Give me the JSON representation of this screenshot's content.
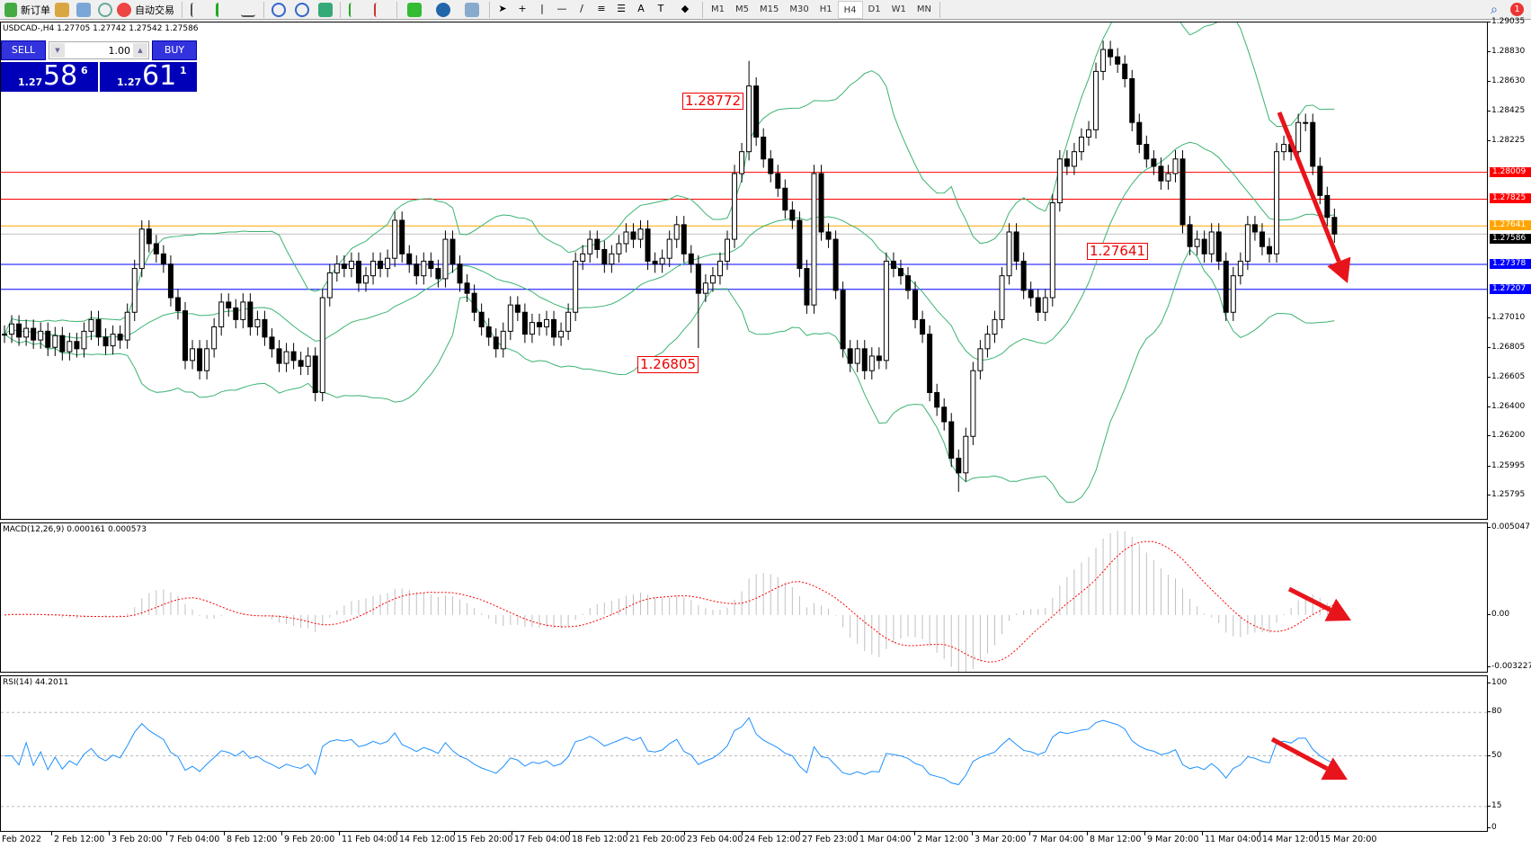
{
  "toolbar": {
    "new_order": "新订单",
    "auto_trading": "自动交易",
    "timeframes": [
      "M1",
      "M5",
      "M15",
      "M30",
      "H1",
      "H4",
      "D1",
      "W1",
      "MN"
    ],
    "active_timeframe": "H4",
    "notification_count": "1"
  },
  "chart_header": "USDCAD-,H4  1.27705 1.27742 1.27542 1.27586",
  "trade_panel": {
    "sell": "SELL",
    "buy": "BUY",
    "lot": "1.00",
    "sell_prefix": "1.27",
    "sell_big": "58",
    "sell_sup": "6",
    "buy_prefix": "1.27",
    "buy_big": "61",
    "buy_sup": "1"
  },
  "chart_data": [
    {
      "type": "candlestick",
      "symbol": "USDCAD",
      "timeframe": "H4",
      "ylim": [
        1.25795,
        1.29035
      ],
      "y_ticks": [
        "1.29035",
        "1.28830",
        "1.28630",
        "1.28425",
        "1.28225",
        "1.27010",
        "1.26805",
        "1.26605",
        "1.26400",
        "1.26200",
        "1.25995",
        "1.25795"
      ],
      "x_ticks": [
        "Feb 2022",
        "2 Feb 12:00",
        "3 Feb 20:00",
        "7 Feb 04:00",
        "8 Feb 12:00",
        "9 Feb 20:00",
        "11 Feb 04:00",
        "14 Feb 12:00",
        "15 Feb 20:00",
        "17 Feb 04:00",
        "18 Feb 12:00",
        "21 Feb 20:00",
        "23 Feb 04:00",
        "24 Feb 12:00",
        "27 Feb 23:00",
        "1 Mar 04:00",
        "2 Mar 12:00",
        "3 Mar 20:00",
        "7 Mar 04:00",
        "8 Mar 12:00",
        "9 Mar 20:00",
        "11 Mar 04:00",
        "14 Mar 12:00",
        "15 Mar 20:00"
      ],
      "close": [
        1.269,
        1.2697,
        1.2688,
        1.2694,
        1.2686,
        1.2692,
        1.2681,
        1.2689,
        1.2678,
        1.2685,
        1.268,
        1.2692,
        1.27,
        1.2688,
        1.2682,
        1.269,
        1.2686,
        1.2705,
        1.2735,
        1.2762,
        1.2752,
        1.2745,
        1.2738,
        1.2715,
        1.2706,
        1.2672,
        1.268,
        1.2665,
        1.268,
        1.2695,
        1.2712,
        1.2708,
        1.27,
        1.2712,
        1.2695,
        1.27,
        1.2688,
        1.268,
        1.267,
        1.2678,
        1.2672,
        1.2668,
        1.2675,
        1.265,
        1.2715,
        1.2732,
        1.2738,
        1.2735,
        1.274,
        1.2725,
        1.273,
        1.274,
        1.2735,
        1.2742,
        1.2768,
        1.2745,
        1.2738,
        1.273,
        1.274,
        1.2735,
        1.2728,
        1.2755,
        1.2738,
        1.2725,
        1.2718,
        1.2705,
        1.2695,
        1.2688,
        1.268,
        1.2692,
        1.271,
        1.2705,
        1.269,
        1.2698,
        1.2695,
        1.27,
        1.2688,
        1.2692,
        1.2705,
        1.274,
        1.2745,
        1.2755,
        1.2748,
        1.2738,
        1.2745,
        1.2752,
        1.276,
        1.2755,
        1.2762,
        1.274,
        1.2738,
        1.2742,
        1.2755,
        1.2765,
        1.2745,
        1.2738,
        1.2718,
        1.2725,
        1.273,
        1.274,
        1.2755,
        1.28,
        1.2815,
        1.286,
        1.2825,
        1.281,
        1.28,
        1.279,
        1.2775,
        1.2768,
        1.2735,
        1.271,
        1.28,
        1.276,
        1.2755,
        1.272,
        1.268,
        1.267,
        1.268,
        1.2665,
        1.2675,
        1.2672,
        1.274,
        1.2735,
        1.273,
        1.272,
        1.27,
        1.269,
        1.265,
        1.264,
        1.263,
        1.2605,
        1.2595,
        1.262,
        1.2665,
        1.268,
        1.269,
        1.27,
        1.273,
        1.276,
        1.274,
        1.272,
        1.2715,
        1.2705,
        1.2715,
        1.278,
        1.281,
        1.2805,
        1.2815,
        1.2825,
        1.283,
        1.287,
        1.2885,
        1.288,
        1.2875,
        1.2865,
        1.2835,
        1.282,
        1.281,
        1.2805,
        1.2795,
        1.28,
        1.281,
        1.2765,
        1.275,
        1.2755,
        1.2745,
        1.276,
        1.274,
        1.2705,
        1.273,
        1.274,
        1.2765,
        1.276,
        1.275,
        1.2745,
        1.2815,
        1.282,
        1.2815,
        1.2835,
        1.2835,
        1.2805,
        1.2785,
        1.277,
        1.27586
      ],
      "annotations": [
        {
          "text": "1.28772",
          "price": 1.28772
        },
        {
          "text": "1.26805",
          "price": 1.26805
        },
        {
          "text": "1.27641",
          "price": 1.27641
        }
      ],
      "levels": [
        {
          "price": "1.28009",
          "color": "#ff0000"
        },
        {
          "price": "1.27825",
          "color": "#ff0000"
        },
        {
          "price": "1.27641",
          "color": "#ffa500"
        },
        {
          "price": "1.27378",
          "color": "#0000ff"
        },
        {
          "price": "1.27207",
          "color": "#0000ff"
        }
      ],
      "current_price": {
        "price": "1.27586",
        "color": "#000000"
      },
      "bollinger_color": "#3cb371",
      "arrow_color": "#e8141c"
    },
    {
      "type": "histogram+line",
      "title": "MACD(12,26,9) 0.000161 0.000573",
      "ylim": [
        -0.003227,
        0.005047
      ],
      "y_ticks": [
        "0.005047",
        "0.00",
        "-0.003227"
      ],
      "histogram_color": "#c0c0c0",
      "signal_color": "#ff0000"
    },
    {
      "type": "line",
      "title": "RSI(14) 44.2011",
      "ylim": [
        0,
        100
      ],
      "y_ticks": [
        "100",
        "80",
        "50",
        "15",
        "0"
      ],
      "levels": [
        80,
        50,
        15
      ],
      "color": "#1e90ff"
    }
  ]
}
